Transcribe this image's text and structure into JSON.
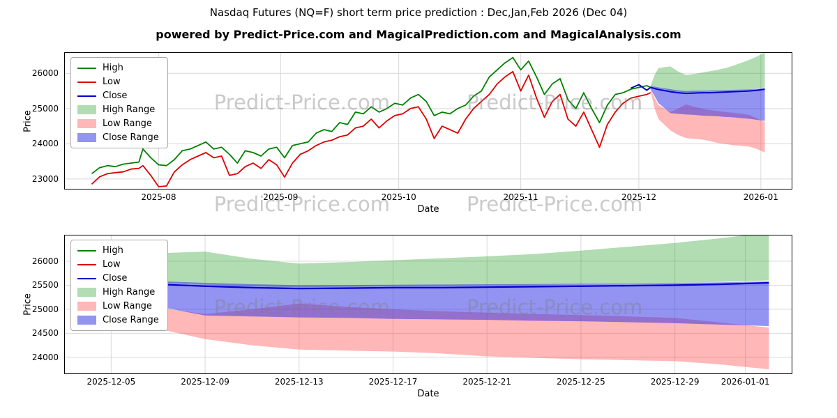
{
  "header": {
    "title": "Nasdaq Futures (NQ=F) short term price prediction : Dec,Jan,Feb 2026 (Dec 04)",
    "subtitle": "powered by Predict-Price.com and MagicalPrediction.com and MagicalAnalysis.com"
  },
  "watermark": {
    "text": "Predict-Price.com"
  },
  "colors": {
    "high": "#008000",
    "low": "#dd0000",
    "close": "#0000cc",
    "high_range": "rgba(0,140,0,0.30)",
    "low_range": "rgba(255,30,30,0.32)",
    "close_range": "rgba(40,40,230,0.50)",
    "grid": "#d9d9d9"
  },
  "chart_data": [
    {
      "type": "line",
      "name": "history-with-prediction",
      "xlabel": "Date",
      "ylabel": "Price",
      "ylim": [
        22700,
        26600
      ],
      "yticks": [
        23000,
        24000,
        25000,
        26000
      ],
      "x_domain": [
        "2025-07-08",
        "2026-01-09"
      ],
      "xticks": [
        {
          "date": "2025-08-01",
          "label": "2025-08"
        },
        {
          "date": "2025-09-01",
          "label": "2025-09"
        },
        {
          "date": "2025-10-01",
          "label": "2025-10"
        },
        {
          "date": "2025-11-01",
          "label": "2025-11"
        },
        {
          "date": "2025-12-01",
          "label": "2025-12"
        },
        {
          "date": "2026-01-01",
          "label": "2026-01"
        }
      ],
      "dates": {
        "hist": [
          "2025-07-15",
          "2025-07-17",
          "2025-07-19",
          "2025-07-21",
          "2025-07-23",
          "2025-07-25",
          "2025-07-27",
          "2025-07-28",
          "2025-07-30",
          "2025-08-01",
          "2025-08-03",
          "2025-08-05",
          "2025-08-07",
          "2025-08-09",
          "2025-08-11",
          "2025-08-13",
          "2025-08-15",
          "2025-08-17",
          "2025-08-19",
          "2025-08-21",
          "2025-08-23",
          "2025-08-25",
          "2025-08-27",
          "2025-08-29",
          "2025-08-31",
          "2025-09-02",
          "2025-09-04",
          "2025-09-06",
          "2025-09-08",
          "2025-09-10",
          "2025-09-12",
          "2025-09-14",
          "2025-09-16",
          "2025-09-18",
          "2025-09-20",
          "2025-09-22",
          "2025-09-24",
          "2025-09-26",
          "2025-09-28",
          "2025-09-30",
          "2025-10-02",
          "2025-10-04",
          "2025-10-06",
          "2025-10-08",
          "2025-10-10",
          "2025-10-12",
          "2025-10-14",
          "2025-10-16",
          "2025-10-18",
          "2025-10-20",
          "2025-10-22",
          "2025-10-24",
          "2025-10-26",
          "2025-10-28",
          "2025-10-30",
          "2025-11-01",
          "2025-11-03",
          "2025-11-05",
          "2025-11-07",
          "2025-11-09",
          "2025-11-11",
          "2025-11-13",
          "2025-11-15",
          "2025-11-17",
          "2025-11-19",
          "2025-11-21",
          "2025-11-23",
          "2025-11-25",
          "2025-11-27",
          "2025-11-29",
          "2025-12-01",
          "2025-12-03",
          "2025-12-04"
        ],
        "pred": [
          "2025-12-04",
          "2025-12-05",
          "2025-12-06",
          "2025-12-09",
          "2025-12-11",
          "2025-12-13",
          "2025-12-15",
          "2025-12-17",
          "2025-12-19",
          "2025-12-21",
          "2025-12-23",
          "2025-12-25",
          "2025-12-27",
          "2025-12-29",
          "2025-12-31",
          "2026-01-02"
        ],
        "close": [
          "2025-11-29",
          "2025-12-01",
          "2025-12-03",
          "2025-12-04",
          "2025-12-05",
          "2025-12-06",
          "2025-12-09",
          "2025-12-11",
          "2025-12-13",
          "2025-12-15",
          "2025-12-17",
          "2025-12-19",
          "2025-12-21",
          "2025-12-23",
          "2025-12-25",
          "2025-12-27",
          "2025-12-29",
          "2025-12-31",
          "2026-01-02"
        ]
      },
      "bands": [
        {
          "name": "High Range",
          "dates": "pred",
          "fill": "rgba(0,140,0,0.30)",
          "upper": [
            25650,
            25950,
            26150,
            26200,
            26050,
            25950,
            25980,
            26020,
            26060,
            26100,
            26150,
            26220,
            26300,
            26380,
            26480,
            26600
          ],
          "lower": [
            25650,
            25600,
            25580,
            25520,
            25480,
            25460,
            25470,
            25480,
            25490,
            25500,
            25510,
            25520,
            25540,
            25550,
            25570,
            25600
          ]
        },
        {
          "name": "Low Range",
          "dates": "pred",
          "fill": "rgba(255,30,30,0.32)",
          "upper": [
            25550,
            25300,
            25100,
            24900,
            25000,
            25120,
            25050,
            25000,
            24960,
            24930,
            24900,
            24880,
            24850,
            24820,
            24720,
            24620
          ],
          "lower": [
            25500,
            25000,
            24700,
            24380,
            24250,
            24160,
            24140,
            24120,
            24080,
            24020,
            23990,
            23960,
            23940,
            23920,
            23850,
            23750
          ]
        },
        {
          "name": "Close Range",
          "dates": "pred",
          "fill": "rgba(40,40,230,0.50)",
          "upper": [
            25650,
            25620,
            25600,
            25550,
            25520,
            25500,
            25505,
            25510,
            25515,
            25520,
            25525,
            25530,
            25540,
            25550,
            25560,
            25580
          ],
          "lower": [
            25550,
            25350,
            25150,
            24870,
            24850,
            24830,
            24820,
            24800,
            24790,
            24780,
            24760,
            24750,
            24730,
            24710,
            24680,
            24650
          ]
        }
      ],
      "lines": [
        {
          "name": "High",
          "dates": "hist",
          "color": "#008000",
          "width": 1.8,
          "values": [
            23150,
            23320,
            23380,
            23350,
            23420,
            23450,
            23480,
            23850,
            23600,
            23400,
            23380,
            23550,
            23800,
            23850,
            23950,
            24050,
            23850,
            23900,
            23700,
            23450,
            23800,
            23750,
            23650,
            23850,
            23900,
            23600,
            23950,
            24000,
            24050,
            24300,
            24400,
            24350,
            24600,
            24550,
            24900,
            24850,
            25050,
            24900,
            25000,
            25150,
            25100,
            25300,
            25400,
            25200,
            24800,
            24900,
            24850,
            25000,
            25100,
            25350,
            25500,
            25900,
            26100,
            26300,
            26450,
            26100,
            26350,
            25900,
            25400,
            25700,
            25850,
            25250,
            25000,
            25450,
            25000,
            24600,
            25100,
            25400,
            25450,
            25550,
            25600,
            25650,
            25600
          ]
        },
        {
          "name": "Low",
          "dates": "hist",
          "color": "#dd0000",
          "width": 1.8,
          "values": [
            22850,
            23060,
            23150,
            23180,
            23200,
            23280,
            23300,
            23380,
            23100,
            22780,
            22800,
            23200,
            23400,
            23550,
            23650,
            23750,
            23600,
            23650,
            23100,
            23150,
            23350,
            23450,
            23300,
            23550,
            23400,
            23050,
            23450,
            23700,
            23800,
            23950,
            24050,
            24100,
            24200,
            24250,
            24450,
            24500,
            24700,
            24450,
            24650,
            24800,
            24850,
            25000,
            25050,
            24700,
            24150,
            24500,
            24400,
            24300,
            24700,
            25000,
            25200,
            25400,
            25700,
            25900,
            26050,
            25500,
            25950,
            25300,
            24750,
            25200,
            25400,
            24700,
            24500,
            24900,
            24400,
            23900,
            24550,
            24900,
            25150,
            25300,
            25350,
            25400,
            25450
          ]
        },
        {
          "name": "Close",
          "dates": "close",
          "color": "#0000cc",
          "width": 2.0,
          "values": [
            25580,
            25680,
            25520,
            25600,
            25570,
            25540,
            25480,
            25450,
            25430,
            25440,
            25450,
            25450,
            25460,
            25470,
            25480,
            25490,
            25500,
            25520,
            25550
          ]
        }
      ],
      "legend": [
        {
          "label": "High",
          "kind": "line",
          "color": "#008000"
        },
        {
          "label": "Low",
          "kind": "line",
          "color": "#dd0000"
        },
        {
          "label": "Close",
          "kind": "line",
          "color": "#0000cc"
        },
        {
          "label": "High Range",
          "kind": "patch",
          "color": "rgba(0,140,0,0.30)"
        },
        {
          "label": "Low Range",
          "kind": "patch",
          "color": "rgba(255,30,30,0.32)"
        },
        {
          "label": "Close Range",
          "kind": "patch",
          "color": "rgba(40,40,230,0.50)"
        }
      ]
    },
    {
      "type": "line",
      "name": "prediction-detail",
      "xlabel": "Date",
      "ylabel": "Price",
      "ylim": [
        23650,
        26550
      ],
      "yticks": [
        24000,
        24500,
        25000,
        25500,
        26000
      ],
      "x_domain": [
        "2025-12-03",
        "2026-01-03"
      ],
      "xticks": [
        {
          "date": "2025-12-05",
          "label": "2025-12-05"
        },
        {
          "date": "2025-12-09",
          "label": "2025-12-09"
        },
        {
          "date": "2025-12-13",
          "label": "2025-12-13"
        },
        {
          "date": "2025-12-17",
          "label": "2025-12-17"
        },
        {
          "date": "2025-12-21",
          "label": "2025-12-21"
        },
        {
          "date": "2025-12-25",
          "label": "2025-12-25"
        },
        {
          "date": "2025-12-29",
          "label": "2025-12-29"
        },
        {
          "date": "2026-01-01",
          "label": "2026-01-01"
        }
      ],
      "dates": {
        "pred": [
          "2025-12-04",
          "2025-12-05",
          "2025-12-06",
          "2025-12-09",
          "2025-12-11",
          "2025-12-13",
          "2025-12-15",
          "2025-12-17",
          "2025-12-19",
          "2025-12-21",
          "2025-12-23",
          "2025-12-25",
          "2025-12-27",
          "2025-12-29",
          "2025-12-31",
          "2026-01-02"
        ]
      },
      "bands": [
        {
          "name": "High Range",
          "dates": "pred",
          "fill": "rgba(0,140,0,0.30)",
          "upper": [
            25650,
            25950,
            26150,
            26200,
            26050,
            25950,
            25980,
            26020,
            26060,
            26100,
            26150,
            26220,
            26300,
            26380,
            26480,
            26600
          ],
          "lower": [
            25650,
            25600,
            25580,
            25520,
            25480,
            25460,
            25470,
            25480,
            25490,
            25500,
            25510,
            25520,
            25540,
            25550,
            25570,
            25600
          ]
        },
        {
          "name": "Low Range",
          "dates": "pred",
          "fill": "rgba(255,30,30,0.32)",
          "upper": [
            25550,
            25300,
            25100,
            24900,
            25000,
            25120,
            25050,
            25000,
            24960,
            24930,
            24900,
            24880,
            24850,
            24820,
            24720,
            24620
          ],
          "lower": [
            25500,
            25000,
            24700,
            24380,
            24250,
            24160,
            24140,
            24120,
            24080,
            24020,
            23990,
            23960,
            23940,
            23920,
            23850,
            23750
          ]
        },
        {
          "name": "Close Range",
          "dates": "pred",
          "fill": "rgba(40,40,230,0.50)",
          "upper": [
            25650,
            25620,
            25600,
            25550,
            25520,
            25500,
            25505,
            25510,
            25515,
            25520,
            25525,
            25530,
            25540,
            25550,
            25560,
            25580
          ],
          "lower": [
            25550,
            25350,
            25150,
            24870,
            24850,
            24830,
            24820,
            24800,
            24790,
            24780,
            24760,
            24750,
            24730,
            24710,
            24680,
            24650
          ]
        }
      ],
      "lines": [
        {
          "name": "Close",
          "dates": "pred",
          "color": "#0000cc",
          "width": 2.2,
          "values": [
            25600,
            25570,
            25540,
            25480,
            25450,
            25430,
            25440,
            25450,
            25450,
            25460,
            25470,
            25480,
            25490,
            25500,
            25520,
            25550
          ]
        }
      ],
      "legend": [
        {
          "label": "High",
          "kind": "line",
          "color": "#008000"
        },
        {
          "label": "Low",
          "kind": "line",
          "color": "#dd0000"
        },
        {
          "label": "Close",
          "kind": "line",
          "color": "#0000cc"
        },
        {
          "label": "High Range",
          "kind": "patch",
          "color": "rgba(0,140,0,0.30)"
        },
        {
          "label": "Low Range",
          "kind": "patch",
          "color": "rgba(255,30,30,0.32)"
        },
        {
          "label": "Close Range",
          "kind": "patch",
          "color": "rgba(40,40,230,0.50)"
        }
      ]
    }
  ]
}
